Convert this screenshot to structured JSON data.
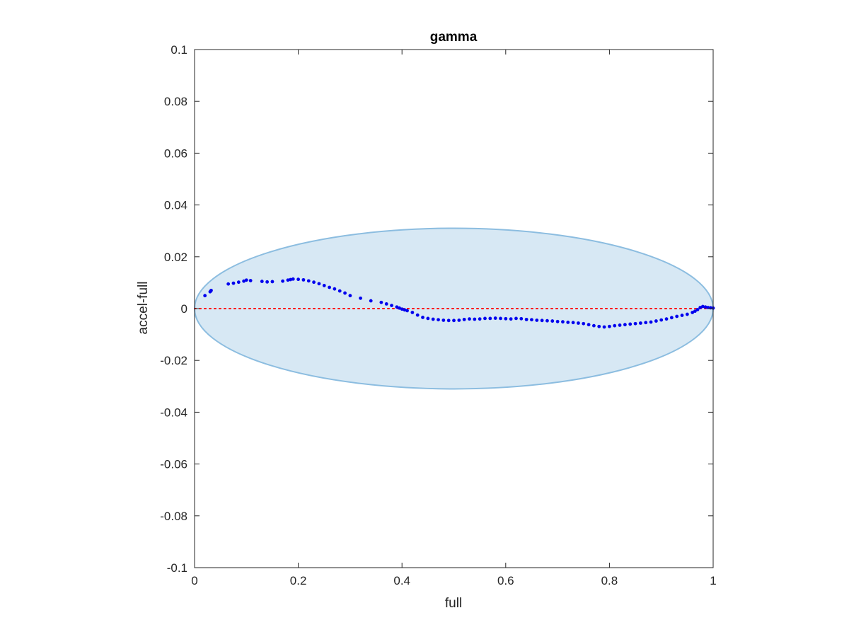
{
  "chart_data": {
    "type": "scatter",
    "title": "gamma",
    "xlabel": "full",
    "ylabel": "accel-full",
    "xlim": [
      0,
      1
    ],
    "ylim": [
      -0.1,
      0.1
    ],
    "xticks": [
      0,
      0.2,
      0.4,
      0.6,
      0.8,
      1
    ],
    "xtick_labels": [
      "0",
      "0.2",
      "0.4",
      "0.6",
      "0.8",
      "1"
    ],
    "yticks": [
      0.1,
      0.08,
      0.06,
      0.04,
      0.02,
      0,
      -0.02,
      -0.04,
      -0.06,
      -0.08,
      -0.1
    ],
    "ytick_labels": [
      "0.1",
      "0.08",
      "0.06",
      "0.04",
      "0.02",
      "0",
      "-0.02",
      "-0.04",
      "-0.06",
      "-0.08",
      "-0.1"
    ],
    "grid": false,
    "ellipse": {
      "cx": 0.5,
      "cy": 0,
      "rx": 0.5,
      "ry": 0.031,
      "fill": "#d7e8f4",
      "stroke": "#8cbde0"
    },
    "reference_line": {
      "y": 0,
      "color": "#ff0000",
      "style": "dotted"
    },
    "series": [
      {
        "color": "#0000ee",
        "x": [
          0.02,
          0.03,
          0.032,
          0.065,
          0.075,
          0.085,
          0.095,
          0.1,
          0.108,
          0.13,
          0.14,
          0.15,
          0.17,
          0.18,
          0.185,
          0.19,
          0.2,
          0.21,
          0.22,
          0.23,
          0.24,
          0.25,
          0.26,
          0.27,
          0.28,
          0.29,
          0.3,
          0.32,
          0.34,
          0.36,
          0.37,
          0.38,
          0.39,
          0.395,
          0.4,
          0.405,
          0.41,
          0.42,
          0.43,
          0.44,
          0.45,
          0.46,
          0.47,
          0.48,
          0.49,
          0.5,
          0.51,
          0.52,
          0.53,
          0.54,
          0.55,
          0.56,
          0.57,
          0.58,
          0.59,
          0.6,
          0.61,
          0.62,
          0.63,
          0.64,
          0.65,
          0.66,
          0.67,
          0.68,
          0.69,
          0.7,
          0.71,
          0.72,
          0.73,
          0.74,
          0.75,
          0.76,
          0.77,
          0.78,
          0.79,
          0.8,
          0.81,
          0.82,
          0.83,
          0.84,
          0.85,
          0.86,
          0.87,
          0.88,
          0.89,
          0.9,
          0.91,
          0.92,
          0.93,
          0.94,
          0.95,
          0.96,
          0.965,
          0.97,
          0.975,
          0.98,
          0.985,
          0.99,
          0.995,
          1.0
        ],
        "y": [
          0.005,
          0.0065,
          0.007,
          0.0095,
          0.0098,
          0.0102,
          0.0106,
          0.011,
          0.0108,
          0.0105,
          0.0103,
          0.0104,
          0.0106,
          0.011,
          0.0112,
          0.0114,
          0.0113,
          0.0111,
          0.0107,
          0.0102,
          0.0096,
          0.0089,
          0.0082,
          0.0076,
          0.0068,
          0.006,
          0.005,
          0.004,
          0.003,
          0.0024,
          0.0018,
          0.0012,
          0.0006,
          0.0002,
          -0.0002,
          -0.0005,
          -0.0008,
          -0.0015,
          -0.0025,
          -0.0034,
          -0.0038,
          -0.0041,
          -0.0043,
          -0.0045,
          -0.0046,
          -0.0046,
          -0.0045,
          -0.0042,
          -0.004,
          -0.0041,
          -0.004,
          -0.0038,
          -0.0038,
          -0.0037,
          -0.0038,
          -0.0039,
          -0.004,
          -0.0038,
          -0.0039,
          -0.0042,
          -0.0043,
          -0.0045,
          -0.0046,
          -0.0047,
          -0.0048,
          -0.005,
          -0.0051,
          -0.0053,
          -0.0054,
          -0.0056,
          -0.0058,
          -0.0062,
          -0.0066,
          -0.0069,
          -0.0071,
          -0.0069,
          -0.0066,
          -0.0064,
          -0.0062,
          -0.006,
          -0.0058,
          -0.0056,
          -0.0054,
          -0.0052,
          -0.0048,
          -0.0044,
          -0.004,
          -0.0035,
          -0.003,
          -0.0026,
          -0.0022,
          -0.0015,
          -0.001,
          -0.0004,
          0.0004,
          0.0008,
          0.0006,
          0.0004,
          0.0003,
          0.0002
        ]
      }
    ]
  }
}
